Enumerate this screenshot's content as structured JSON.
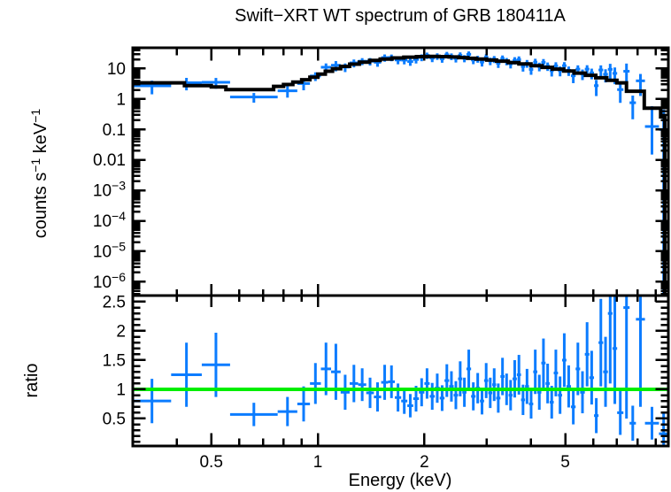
{
  "title": "Swift−XRT WT spectrum of GRB 180411A",
  "colors": {
    "data_blue": "#0b7cff",
    "model_black": "#000000",
    "unity_green": "#00ee00",
    "frame": "#000000",
    "background": "#ffffff"
  },
  "chart_data": {
    "type": "scatter",
    "title": "Swift−XRT WT spectrum of GRB 180411A",
    "xlabel": "Energy (keV)",
    "ylabel_top": "counts s⁻¹ keV⁻¹",
    "ylabel_top_segments": [
      {
        "t": "counts s"
      },
      {
        "t": "−1",
        "sup": true
      },
      {
        "t": " keV"
      },
      {
        "t": "−1",
        "sup": true
      }
    ],
    "ylabel_bottom": "ratio",
    "xscale": "log",
    "xlim": [
      0.3,
      9.78
    ],
    "top_yscale": "log",
    "top_ylim": [
      3.5e-07,
      48.2
    ],
    "bottom_yscale": "linear",
    "bottom_ylim": [
      0.03,
      2.606
    ],
    "legend": "none",
    "grid": false,
    "x_major_ticks": [
      0.5,
      1,
      2,
      5
    ],
    "x_major_labels": [
      "0.5",
      "1",
      "2",
      "5"
    ],
    "x_minor_ticks": [
      0.4,
      0.6,
      0.7,
      0.8,
      0.9,
      3,
      4,
      6,
      7,
      8,
      9
    ],
    "top_y_major_ticks": [
      10,
      1,
      0.1,
      0.01,
      0.001,
      0.0001,
      1e-05,
      1e-06
    ],
    "top_y_labels": [
      {
        "t": "10"
      },
      {
        "t": "1"
      },
      {
        "t": "0.1"
      },
      {
        "t": "0.01"
      },
      {
        "t": "10",
        "sup": "−3"
      },
      {
        "t": "10",
        "sup": "−4"
      },
      {
        "t": "10",
        "sup": "−5"
      },
      {
        "t": "10",
        "sup": "−6"
      }
    ],
    "bottom_y_major_ticks": [
      0.5,
      1,
      1.5,
      2,
      2.5
    ],
    "bottom_y_labels": [
      "0.5",
      "1",
      "1.5",
      "2",
      "2.5"
    ],
    "unity_ratio": 1,
    "model_steps": [
      [
        0.3,
        3.4
      ],
      [
        0.42,
        2.75
      ],
      [
        0.5,
        2.5
      ],
      [
        0.55,
        2.05
      ],
      [
        0.75,
        2.6
      ],
      [
        0.8,
        3.0
      ],
      [
        0.85,
        3.6
      ],
      [
        0.9,
        4.3
      ],
      [
        0.95,
        5.2
      ],
      [
        1.0,
        6.6
      ],
      [
        1.05,
        8.2
      ],
      [
        1.1,
        9.9
      ],
      [
        1.16,
        11.8
      ],
      [
        1.23,
        14.0
      ],
      [
        1.31,
        16.2
      ],
      [
        1.4,
        18.5
      ],
      [
        1.5,
        20.5
      ],
      [
        1.62,
        22.3
      ],
      [
        1.75,
        23.7
      ],
      [
        1.9,
        24.6
      ],
      [
        2.05,
        25.0
      ],
      [
        2.2,
        24.7
      ],
      [
        2.35,
        24.0
      ],
      [
        2.5,
        23.0
      ],
      [
        2.65,
        21.8
      ],
      [
        2.8,
        20.5
      ],
      [
        3.0,
        19.0
      ],
      [
        3.2,
        17.5
      ],
      [
        3.45,
        15.8
      ],
      [
        3.7,
        14.2
      ],
      [
        4.0,
        12.5
      ],
      [
        4.3,
        11.0
      ],
      [
        4.6,
        9.6
      ],
      [
        4.95,
        8.3
      ],
      [
        5.3,
        7.1
      ],
      [
        5.7,
        6.0
      ],
      [
        6.1,
        5.0
      ],
      [
        6.55,
        4.1
      ],
      [
        7.0,
        3.4
      ],
      [
        7.45,
        1.8
      ],
      [
        8.36,
        0.5
      ],
      [
        9.3,
        0.26
      ],
      [
        9.55,
        1e-07
      ]
    ],
    "bins": [
      [
        0.3,
        0.385
      ],
      [
        0.385,
        0.47
      ],
      [
        0.47,
        0.565
      ],
      [
        0.565,
        0.77
      ],
      [
        0.77,
        0.875
      ],
      [
        0.875,
        0.95
      ],
      [
        0.95,
        1.02
      ],
      [
        1.02,
        1.09
      ],
      [
        1.09,
        1.16
      ],
      [
        1.16,
        1.23
      ],
      [
        1.23,
        1.3
      ],
      [
        1.3,
        1.37
      ],
      [
        1.37,
        1.44
      ],
      [
        1.44,
        1.51
      ],
      [
        1.51,
        1.58
      ],
      [
        1.58,
        1.65
      ],
      [
        1.65,
        1.72
      ],
      [
        1.72,
        1.79
      ],
      [
        1.79,
        1.86
      ],
      [
        1.86,
        1.93
      ],
      [
        1.93,
        2.0
      ],
      [
        2.0,
        2.07
      ],
      [
        2.07,
        2.14
      ],
      [
        2.14,
        2.21
      ],
      [
        2.21,
        2.28
      ],
      [
        2.28,
        2.35
      ],
      [
        2.35,
        2.42
      ],
      [
        2.42,
        2.49
      ],
      [
        2.49,
        2.56
      ],
      [
        2.56,
        2.63
      ],
      [
        2.63,
        2.71
      ],
      [
        2.71,
        2.79
      ],
      [
        2.79,
        2.87
      ],
      [
        2.87,
        2.95
      ],
      [
        2.95,
        3.03
      ],
      [
        3.03,
        3.11
      ],
      [
        3.11,
        3.19
      ],
      [
        3.19,
        3.28
      ],
      [
        3.28,
        3.37
      ],
      [
        3.37,
        3.46
      ],
      [
        3.46,
        3.55
      ],
      [
        3.55,
        3.65
      ],
      [
        3.65,
        3.75
      ],
      [
        3.75,
        3.85
      ],
      [
        3.85,
        3.95
      ],
      [
        3.95,
        4.06
      ],
      [
        4.06,
        4.17
      ],
      [
        4.17,
        4.28
      ],
      [
        4.28,
        4.4
      ],
      [
        4.4,
        4.52
      ],
      [
        4.52,
        4.64
      ],
      [
        4.64,
        4.77
      ],
      [
        4.77,
        4.9
      ],
      [
        4.9,
        5.04
      ],
      [
        5.04,
        5.19
      ],
      [
        5.19,
        5.35
      ],
      [
        5.35,
        5.51
      ],
      [
        5.51,
        5.68
      ],
      [
        5.68,
        5.85
      ],
      [
        5.85,
        6.03
      ],
      [
        6.03,
        6.21
      ],
      [
        6.21,
        6.4
      ],
      [
        6.4,
        6.6
      ],
      [
        6.6,
        6.8
      ],
      [
        6.8,
        7.01
      ],
      [
        7.01,
        7.3
      ],
      [
        7.3,
        7.6
      ],
      [
        7.6,
        7.92
      ],
      [
        7.92,
        8.4
      ],
      [
        8.4,
        9.2
      ],
      [
        9.2,
        9.78
      ]
    ],
    "ratio": [
      0.8,
      1.25,
      1.42,
      0.57,
      0.62,
      0.75,
      1.1,
      1.35,
      1.3,
      0.95,
      1.1,
      1.08,
      0.94,
      0.87,
      1.12,
      1.13,
      0.86,
      0.8,
      0.72,
      0.84,
      0.95,
      1.1,
      0.88,
      1.02,
      0.85,
      1.15,
      1.05,
      0.9,
      1.18,
      0.95,
      1.35,
      0.88,
      1.02,
      0.8,
      1.15,
      0.94,
      1.08,
      0.85,
      1.22,
      1.0,
      0.9,
      1.18,
      1.25,
      0.82,
      1.05,
      0.75,
      1.3,
      0.95,
      1.45,
      1.1,
      0.78,
      1.28,
      0.9,
      1.5,
      1.05,
      0.7,
      1.35,
      0.95,
      1.6,
      1.2,
      0.55,
      1.8,
      1.3,
      2.3,
      1.7,
      0.6,
      2.4,
      0.42,
      2.2,
      0.42,
      0.24
    ],
    "ratio_err": [
      0.38,
      0.55,
      0.55,
      0.2,
      0.25,
      0.3,
      0.35,
      0.45,
      0.48,
      0.3,
      0.32,
      0.28,
      0.26,
      0.25,
      0.3,
      0.28,
      0.24,
      0.22,
      0.2,
      0.22,
      0.24,
      0.26,
      0.23,
      0.25,
      0.22,
      0.28,
      0.26,
      0.24,
      0.3,
      0.25,
      0.33,
      0.24,
      0.26,
      0.23,
      0.3,
      0.26,
      0.28,
      0.25,
      0.32,
      0.27,
      0.26,
      0.32,
      0.34,
      0.26,
      0.3,
      0.25,
      0.38,
      0.3,
      0.42,
      0.34,
      0.28,
      0.4,
      0.32,
      0.46,
      0.36,
      0.3,
      0.45,
      0.36,
      0.55,
      0.46,
      0.3,
      0.75,
      0.6,
      1.2,
      0.95,
      0.38,
      1.9,
      0.3,
      1.5,
      0.28,
      0.35
    ],
    "spectrum_overrides": {
      "69": {
        "rate": 0.125,
        "rate_lo": 0.015,
        "rate_hi": 0.58
      },
      "70": {
        "rate": 0.1,
        "rate_lo": 3e-07,
        "rate_hi": 0.45
      }
    }
  }
}
